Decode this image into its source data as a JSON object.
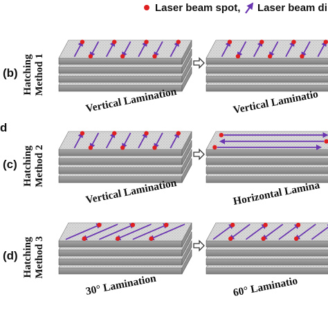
{
  "legend": {
    "spot_label": "Laser beam spot,",
    "direction_label": "Laser beam di",
    "spot_color": "#e02020",
    "arrow_color": "#6a35b0"
  },
  "partial_letter": "d",
  "panels": [
    {
      "letter": "(b)",
      "method_line1": "Hatching",
      "method_line2": "Method 1",
      "left_caption": "Vertical Lamination",
      "right_caption": "Vertical Laminatio",
      "left_pattern": "vertical",
      "right_pattern": "vertical"
    },
    {
      "letter": "(c)",
      "method_line1": "Hatching",
      "method_line2": "Method 2",
      "left_caption": "Vertical Lamination",
      "right_caption": "Horizontal Lamina",
      "left_pattern": "vertical",
      "right_pattern": "horizontal"
    },
    {
      "letter": "(d)",
      "method_line1": "Hatching",
      "method_line2": "Method 3",
      "left_caption": "30° Lamination",
      "right_caption": "60° Laminatio",
      "left_pattern": "angle30",
      "right_pattern": "angle60"
    }
  ],
  "colors": {
    "layer_top": "#dcdcdc",
    "layer_side": "#8f8f8f",
    "layer_edge": "#555555",
    "transfer_arrow": "#333333"
  }
}
